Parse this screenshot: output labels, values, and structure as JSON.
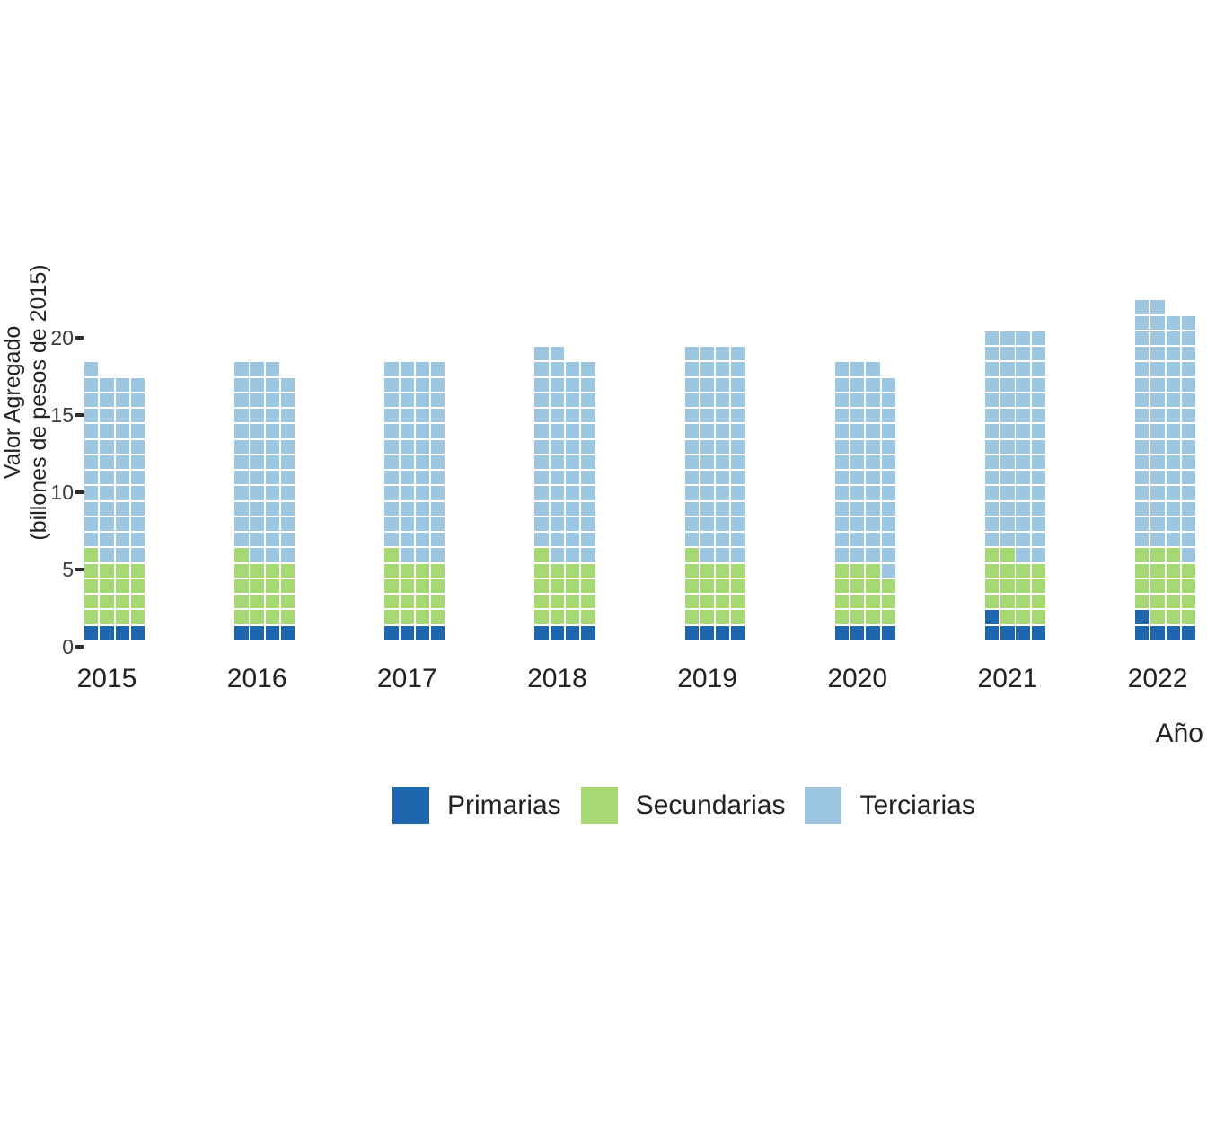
{
  "y_axis": {
    "title_line1": "Valor Agregado",
    "title_line2": "(billones de pesos de 2015)",
    "ticks": [
      0,
      5,
      10,
      15,
      20
    ]
  },
  "x_axis": {
    "title": "Año",
    "labels": [
      "2015",
      "2016",
      "2017",
      "2018",
      "2019",
      "2020",
      "2021",
      "2022"
    ]
  },
  "legend": [
    {
      "label": "Primarias",
      "color": "#1e67ae"
    },
    {
      "label": "Secundarias",
      "color": "#a6d973"
    },
    {
      "label": "Terciarias",
      "color": "#9dc6e0"
    }
  ],
  "chart_data": {
    "type": "bar",
    "subtype": "waffle-stacked-bar",
    "title": "",
    "xlabel": "Año",
    "ylabel": "Valor Agregado (billones de pesos de 2015)",
    "ylim": [
      0,
      22
    ],
    "grid": false,
    "legend_position": "bottom",
    "unit_per_square": 0.25,
    "columns_per_bar": 4,
    "categories": [
      "2015",
      "2016",
      "2017",
      "2018",
      "2019",
      "2020",
      "2021",
      "2022"
    ],
    "series": [
      {
        "name": "Primarias",
        "color": "#1e67ae",
        "values": [
          1.0,
          1.0,
          1.0,
          1.0,
          1.0,
          1.0,
          1.25,
          1.25
        ]
      },
      {
        "name": "Secundarias",
        "color": "#a6d973",
        "values": [
          4.25,
          4.25,
          4.25,
          4.25,
          4.25,
          3.75,
          4.25,
          4.5
        ]
      },
      {
        "name": "Terciarias",
        "color": "#9dc6e0",
        "values": [
          12.0,
          12.5,
          12.75,
          13.25,
          13.75,
          13.0,
          14.5,
          15.75
        ]
      }
    ],
    "totals": [
      17.25,
      17.75,
      18.0,
      18.5,
      19.0,
      17.75,
      20.0,
      21.5
    ]
  }
}
